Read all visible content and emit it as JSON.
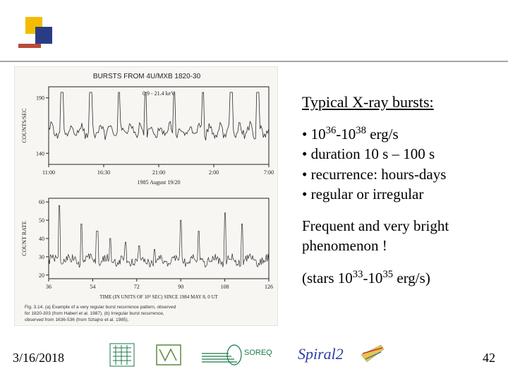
{
  "corner_logo": {
    "yellow": "#f4bc00",
    "blue": "#2b3c87",
    "red": "#b84a3b"
  },
  "divider_color": "#000000",
  "figure": {
    "background": "#f7f6f3",
    "title": "BURSTS FROM 4U/MXB 1820-30",
    "top_panel": {
      "energy_band": "0.9 - 21.4 keV",
      "ylabel": "COUNTS/SEC",
      "yticks": [
        140,
        190
      ],
      "xticks": [
        "11:00",
        "16:30",
        "21:00",
        "2:00",
        "7:00"
      ],
      "xlabel": "1985 August 19/20",
      "baseline_y": 160,
      "noise_amp": 8,
      "spikes_x": [
        0.06,
        0.19,
        0.32,
        0.44,
        0.57,
        0.7,
        0.83,
        0.95
      ],
      "spike_height": 195,
      "line_color": "#2b2b2b"
    },
    "bottom_panel": {
      "ylabel": "COUNT RATE",
      "yticks": [
        20,
        30,
        40,
        50,
        60
      ],
      "xticks": [
        36,
        54,
        72,
        90,
        108,
        126
      ],
      "xlabel": "TIME (IN UNITS OF 10³ SEC) SINCE 1984 MAY 8, 0 UT",
      "baseline_y": 28,
      "noise_amp": 3,
      "spikes_x": [
        0.05,
        0.15,
        0.22,
        0.28,
        0.35,
        0.41,
        0.48,
        0.6,
        0.68,
        0.8,
        0.88
      ],
      "spike_heights": [
        58,
        48,
        44,
        40,
        38,
        36,
        34,
        50,
        44,
        54,
        48
      ],
      "line_color": "#2b2b2b"
    },
    "caption": "Fig. 3.14. (a) Example of a very regular burst recurrence pattern, observed for 1820-303 (from Haberl et al. 1987). (b) Irregular burst recurrence, observed from 1636-536 (from Sztajno et al. 1985)."
  },
  "text": {
    "heading": "Typical X-ray bursts:",
    "bullets": [
      {
        "pre": "10",
        "sup1": "36",
        "mid": "-10",
        "sup2": "38",
        "post": " erg/s"
      },
      {
        "plain": "duration 10 s – 100 s"
      },
      {
        "plain": "recurrence: hours-days"
      },
      {
        "plain": "regular or irregular"
      }
    ],
    "para1": "Frequent and very bright phenomenon !",
    "para2": {
      "pre": "(stars 10",
      "sup1": "33",
      "mid": "-10",
      "sup2": "35",
      "post": " erg/s)"
    }
  },
  "footer": {
    "date": "3/16/2018",
    "page": "42",
    "logos": {
      "soreq_text": "SOREQ",
      "soreq_color": "#1a7a4a",
      "spiral_text": "Spiral2",
      "spiral_color": "#2a3fa5"
    }
  }
}
